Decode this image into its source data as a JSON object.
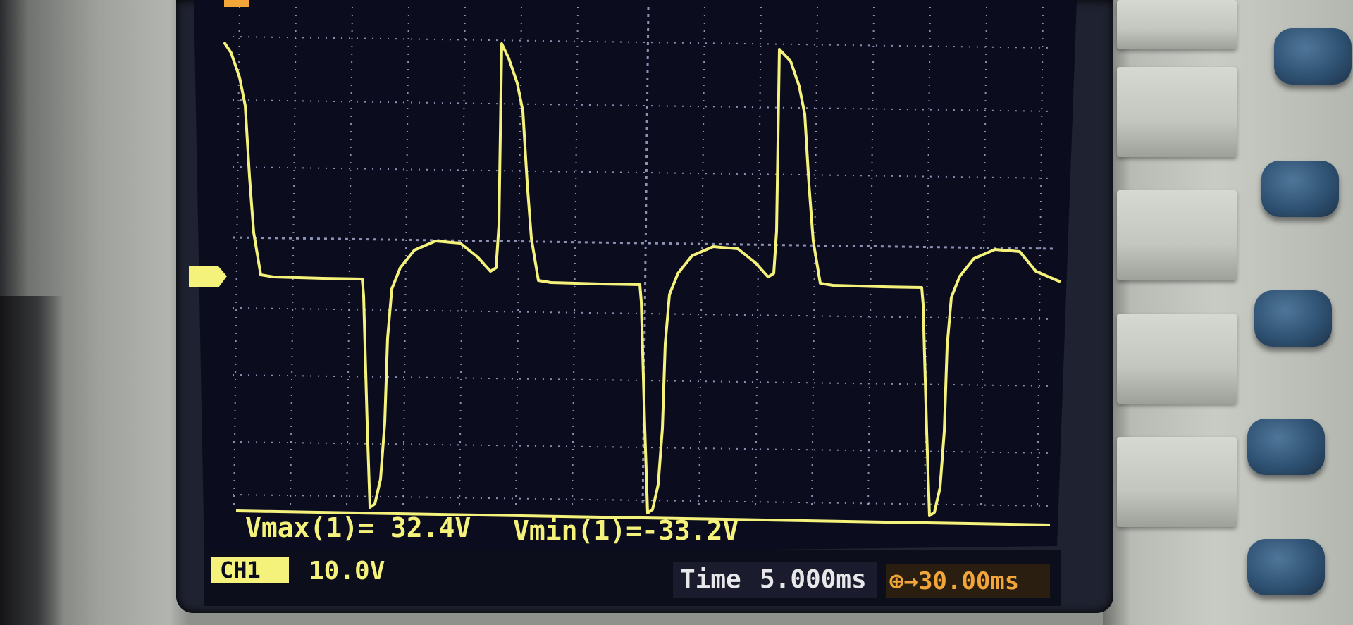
{
  "measurements": {
    "vmax": "Vmax(1)= 32.4V",
    "vmin": "Vmin(1)=-33.2V"
  },
  "channel": {
    "label": "CH1",
    "scale": "10.0V"
  },
  "timebase": {
    "label": "Time",
    "value": "5.000ms",
    "trigger_offset": "⊕→30.00ms"
  },
  "colors": {
    "trace": "#f4f27a",
    "grid": "#b9bfe6",
    "screen": "#0b0d1f",
    "label_orange": "#f2a63a",
    "label_white": "#e8e8ea"
  }
}
